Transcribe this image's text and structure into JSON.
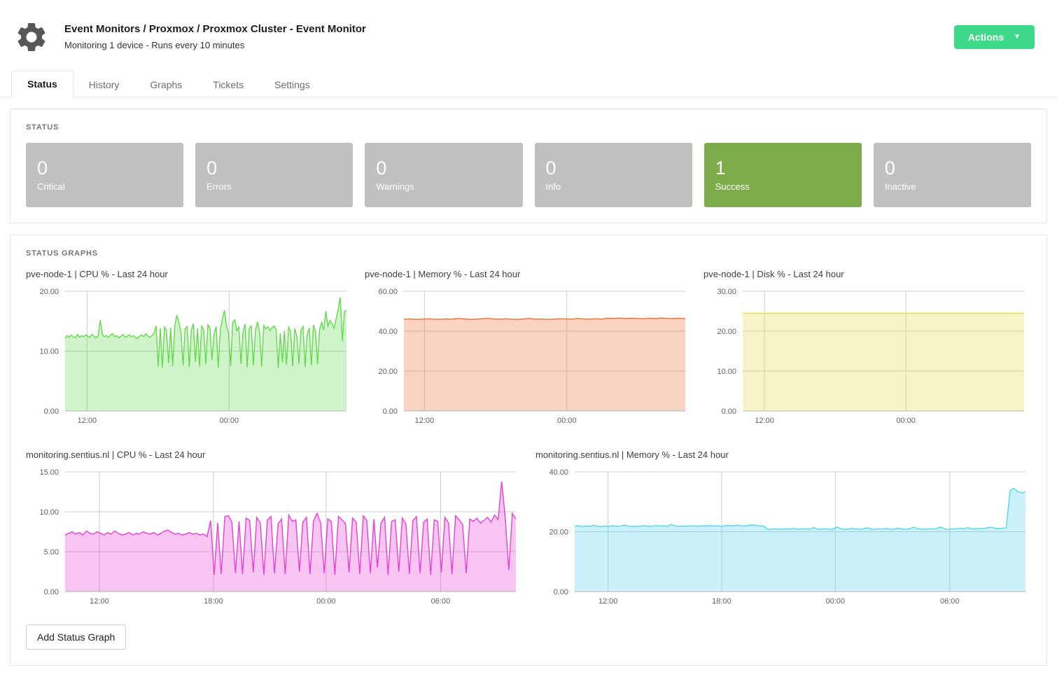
{
  "header": {
    "title": "Event Monitors / Proxmox / Proxmox Cluster - Event Monitor",
    "subtitle": "Monitoring 1 device - Runs every 10 minutes",
    "actions_label": "Actions",
    "accent_color": "#3ed98a"
  },
  "tabs": [
    {
      "label": "Status",
      "active": true
    },
    {
      "label": "History",
      "active": false
    },
    {
      "label": "Graphs",
      "active": false
    },
    {
      "label": "Tickets",
      "active": false
    },
    {
      "label": "Settings",
      "active": false
    }
  ],
  "status_panel": {
    "heading": "STATUS",
    "cards": [
      {
        "count": "0",
        "label": "Critical",
        "color": "#c0c0c0"
      },
      {
        "count": "0",
        "label": "Errors",
        "color": "#c0c0c0"
      },
      {
        "count": "0",
        "label": "Warnings",
        "color": "#c0c0c0"
      },
      {
        "count": "0",
        "label": "Info",
        "color": "#c0c0c0"
      },
      {
        "count": "1",
        "label": "Success",
        "color": "#7dac4b"
      },
      {
        "count": "0",
        "label": "Inactive",
        "color": "#c0c0c0"
      }
    ]
  },
  "graphs_panel": {
    "heading": "STATUS GRAPHS",
    "add_button_label": "Add Status Graph"
  },
  "chart_data": [
    {
      "type": "area",
      "title": "pve-node-1 | CPU % - Last 24 hour",
      "ylim": [
        0,
        20
      ],
      "yticks": [
        {
          "v": 0,
          "label": "0.00"
        },
        {
          "v": 10,
          "label": "10.00"
        },
        {
          "v": 20,
          "label": "20.00"
        }
      ],
      "xticks": [
        {
          "pos": 0.078,
          "label": "12:00"
        },
        {
          "pos": 0.583,
          "label": "00:00"
        }
      ],
      "line_color": "#62da4b",
      "area_opacity": 0.3,
      "grid": true,
      "points": [
        12.1,
        12.6,
        12.3,
        12.7,
        12.4,
        12.2,
        12.8,
        12.3,
        12.6,
        12.4,
        12.7,
        12.5,
        12.3,
        12.8,
        12.5,
        12.2,
        12.6,
        15.2,
        12.8,
        12.4,
        12.6,
        12.3,
        12.7,
        12.9,
        12.4,
        12.6,
        12.2,
        12.5,
        12.8,
        12.3,
        12.5,
        12.7,
        12.4,
        12.6,
        12.3,
        12.1,
        12.5,
        12.7,
        12.4,
        12.9,
        12.5,
        12.3,
        12.6,
        13.0,
        14.2,
        7.4,
        13.8,
        7.2,
        14.0,
        13.5,
        8.0,
        13.9,
        7.5,
        14.3,
        16.0,
        14.8,
        13.2,
        7.6,
        13.7,
        14.1,
        7.3,
        13.5,
        14.6,
        8.2,
        13.8,
        7.4,
        14.2,
        13.6,
        7.8,
        14.4,
        13.9,
        8.5,
        12.9,
        14.1,
        7.2,
        13.6,
        15.3,
        16.8,
        14.2,
        13.0,
        7.5,
        14.8,
        15.2,
        13.4,
        14.0,
        7.8,
        13.2,
        14.5,
        7.3,
        13.8,
        14.2,
        7.6,
        13.5,
        14.9,
        13.1,
        7.4,
        14.3,
        13.7,
        14.1,
        13.4,
        13.9,
        14.2,
        13.6,
        7.2,
        13.0,
        8.1,
        13.4,
        7.7,
        14.0,
        13.3,
        7.5,
        13.8,
        12.4,
        7.9,
        13.5,
        14.1,
        7.3,
        12.8,
        13.9,
        7.6,
        14.4,
        13.2,
        7.8,
        13.6,
        14.8,
        13.5,
        16.7,
        14.2,
        15.1,
        14.6,
        13.8,
        15.4,
        17.0,
        19.0,
        11.6,
        16.6,
        16.8
      ]
    },
    {
      "type": "area",
      "title": "pve-node-1 | Memory % - Last 24 hour",
      "ylim": [
        0,
        60
      ],
      "yticks": [
        {
          "v": 0,
          "label": "0.00"
        },
        {
          "v": 20,
          "label": "20.00"
        },
        {
          "v": 40,
          "label": "40.00"
        },
        {
          "v": 60,
          "label": "60.00"
        }
      ],
      "xticks": [
        {
          "pos": 0.073,
          "label": "12:00"
        },
        {
          "pos": 0.579,
          "label": "00:00"
        }
      ],
      "line_color": "#ee7030",
      "area_opacity": 0.3,
      "grid": true,
      "points": [
        46.0,
        46.1,
        45.9,
        46.0,
        46.2,
        46.0,
        45.9,
        46.1,
        46.0,
        46.3,
        46.1,
        45.9,
        46.0,
        46.2,
        46.4,
        46.1,
        46.0,
        46.2,
        46.0,
        45.9,
        46.1,
        46.3,
        46.0,
        46.1,
        45.9,
        46.0,
        46.2,
        46.1,
        46.0,
        46.3,
        46.1,
        46.0,
        46.2,
        46.0,
        46.5,
        46.4,
        46.6,
        46.3,
        46.5,
        46.4,
        46.2,
        46.5,
        46.3,
        46.6,
        46.4,
        46.3,
        46.5,
        46.2
      ]
    },
    {
      "type": "area",
      "title": "pve-node-1 | Disk % - Last 24 hour",
      "ylim": [
        0,
        30
      ],
      "yticks": [
        {
          "v": 0,
          "label": "0.00"
        },
        {
          "v": 10,
          "label": "10.00"
        },
        {
          "v": 20,
          "label": "20.00"
        },
        {
          "v": 30,
          "label": "30.00"
        }
      ],
      "xticks": [
        {
          "pos": 0.0775,
          "label": "12:00"
        },
        {
          "pos": 0.58,
          "label": "00:00"
        }
      ],
      "line_color": "#e3da45",
      "area_opacity": 0.3,
      "grid": true,
      "points": [
        24.5,
        24.5,
        24.5,
        24.5,
        24.5
      ]
    },
    {
      "type": "area",
      "title": "monitoring.sentius.nl | CPU % - Last 24 hour",
      "ylim": [
        0,
        15
      ],
      "yticks": [
        {
          "v": 0,
          "label": "0.00"
        },
        {
          "v": 5,
          "label": "5.00"
        },
        {
          "v": 10,
          "label": "10.00"
        },
        {
          "v": 15,
          "label": "15.00"
        }
      ],
      "xticks": [
        {
          "pos": 0.076,
          "label": "12:00"
        },
        {
          "pos": 0.329,
          "label": "18:00"
        },
        {
          "pos": 0.579,
          "label": "00:00"
        },
        {
          "pos": 0.833,
          "label": "06:00"
        }
      ],
      "line_color": "#e83fd3",
      "area_opacity": 0.3,
      "grid": true,
      "points": [
        7.1,
        7.3,
        7.5,
        7.2,
        7.4,
        7.1,
        7.6,
        7.3,
        7.2,
        7.5,
        7.3,
        7.1,
        7.4,
        7.2,
        7.6,
        7.3,
        7.1,
        7.2,
        7.4,
        7.1,
        7.3,
        7.2,
        7.5,
        7.3,
        7.2,
        7.4,
        7.1,
        7.3,
        7.6,
        7.7,
        7.4,
        7.2,
        7.3,
        7.1,
        7.2,
        7.4,
        7.2,
        7.3,
        7.1,
        7.2,
        6.9,
        8.9,
        2.1,
        8.6,
        2.2,
        9.4,
        9.5,
        8.7,
        2.3,
        8.8,
        2.2,
        9.2,
        8.9,
        2.4,
        9.3,
        8.6,
        2.1,
        9.0,
        9.4,
        2.3,
        8.5,
        9.1,
        2.2,
        9.6,
        8.8,
        9.0,
        2.5,
        8.7,
        9.3,
        2.2,
        8.9,
        9.8,
        8.6,
        2.3,
        9.1,
        8.8,
        2.1,
        9.4,
        9.0,
        8.5,
        2.4,
        9.2,
        8.7,
        2.2,
        9.5,
        8.9,
        2.3,
        9.1,
        3.0,
        8.6,
        9.3,
        2.1,
        8.8,
        9.0,
        2.5,
        9.2,
        8.5,
        2.2,
        8.9,
        9.4,
        2.3,
        8.7,
        9.1,
        2.1,
        9.0,
        8.8,
        2.4,
        9.3,
        8.6,
        2.2,
        9.5,
        9.0,
        8.4,
        2.3,
        9.1,
        8.8,
        9.2,
        8.6,
        8.9,
        9.3,
        8.7,
        9.6,
        9.0,
        13.8,
        9.2,
        2.7,
        9.8,
        9.1
      ]
    },
    {
      "type": "area",
      "title": "monitoring.sentius.nl | Memory % - Last 24 hour",
      "ylim": [
        0,
        40
      ],
      "yticks": [
        {
          "v": 0,
          "label": "0.00"
        },
        {
          "v": 20,
          "label": "20.00"
        },
        {
          "v": 40,
          "label": "40.00"
        }
      ],
      "xticks": [
        {
          "pos": 0.074,
          "label": "12:00"
        },
        {
          "pos": 0.326,
          "label": "18:00"
        },
        {
          "pos": 0.578,
          "label": "00:00"
        },
        {
          "pos": 0.832,
          "label": "06:00"
        }
      ],
      "line_color": "#54d5ee",
      "area_opacity": 0.3,
      "grid": true,
      "points": [
        21.8,
        22.0,
        21.7,
        21.9,
        21.8,
        22.1,
        21.8,
        21.7,
        21.9,
        21.8,
        22.0,
        21.8,
        21.9,
        22.3,
        21.8,
        21.7,
        21.9,
        21.8,
        22.0,
        21.9,
        21.8,
        22.1,
        21.9,
        22.0,
        21.8,
        22.4,
        22.0,
        21.8,
        21.9,
        21.8,
        22.0,
        21.9,
        21.8,
        22.0,
        21.9,
        22.1,
        21.9,
        22.0,
        21.8,
        22.0,
        22.1,
        21.9,
        22.2,
        22.0,
        21.9,
        22.1,
        22.3,
        22.1,
        22.0,
        21.9,
        20.9,
        20.8,
        21.0,
        20.9,
        20.8,
        21.0,
        20.9,
        21.1,
        20.8,
        20.9,
        21.0,
        20.8,
        21.4,
        20.9,
        20.8,
        21.0,
        20.9,
        20.8,
        21.6,
        21.0,
        20.8,
        20.9,
        21.1,
        20.9,
        20.8,
        21.0,
        21.3,
        20.9,
        20.8,
        21.0,
        20.9,
        21.1,
        20.8,
        20.9,
        21.2,
        20.9,
        20.8,
        21.0,
        21.5,
        21.0,
        20.9,
        20.8,
        21.0,
        20.9,
        21.1,
        21.6,
        20.9,
        20.8,
        21.0,
        20.9,
        21.2,
        20.9,
        21.4,
        21.0,
        20.9,
        21.1,
        21.0,
        21.3,
        21.5,
        21.2,
        21.1,
        21.2,
        21.3,
        33.8,
        34.5,
        33.4,
        33.0,
        33.3
      ]
    }
  ]
}
